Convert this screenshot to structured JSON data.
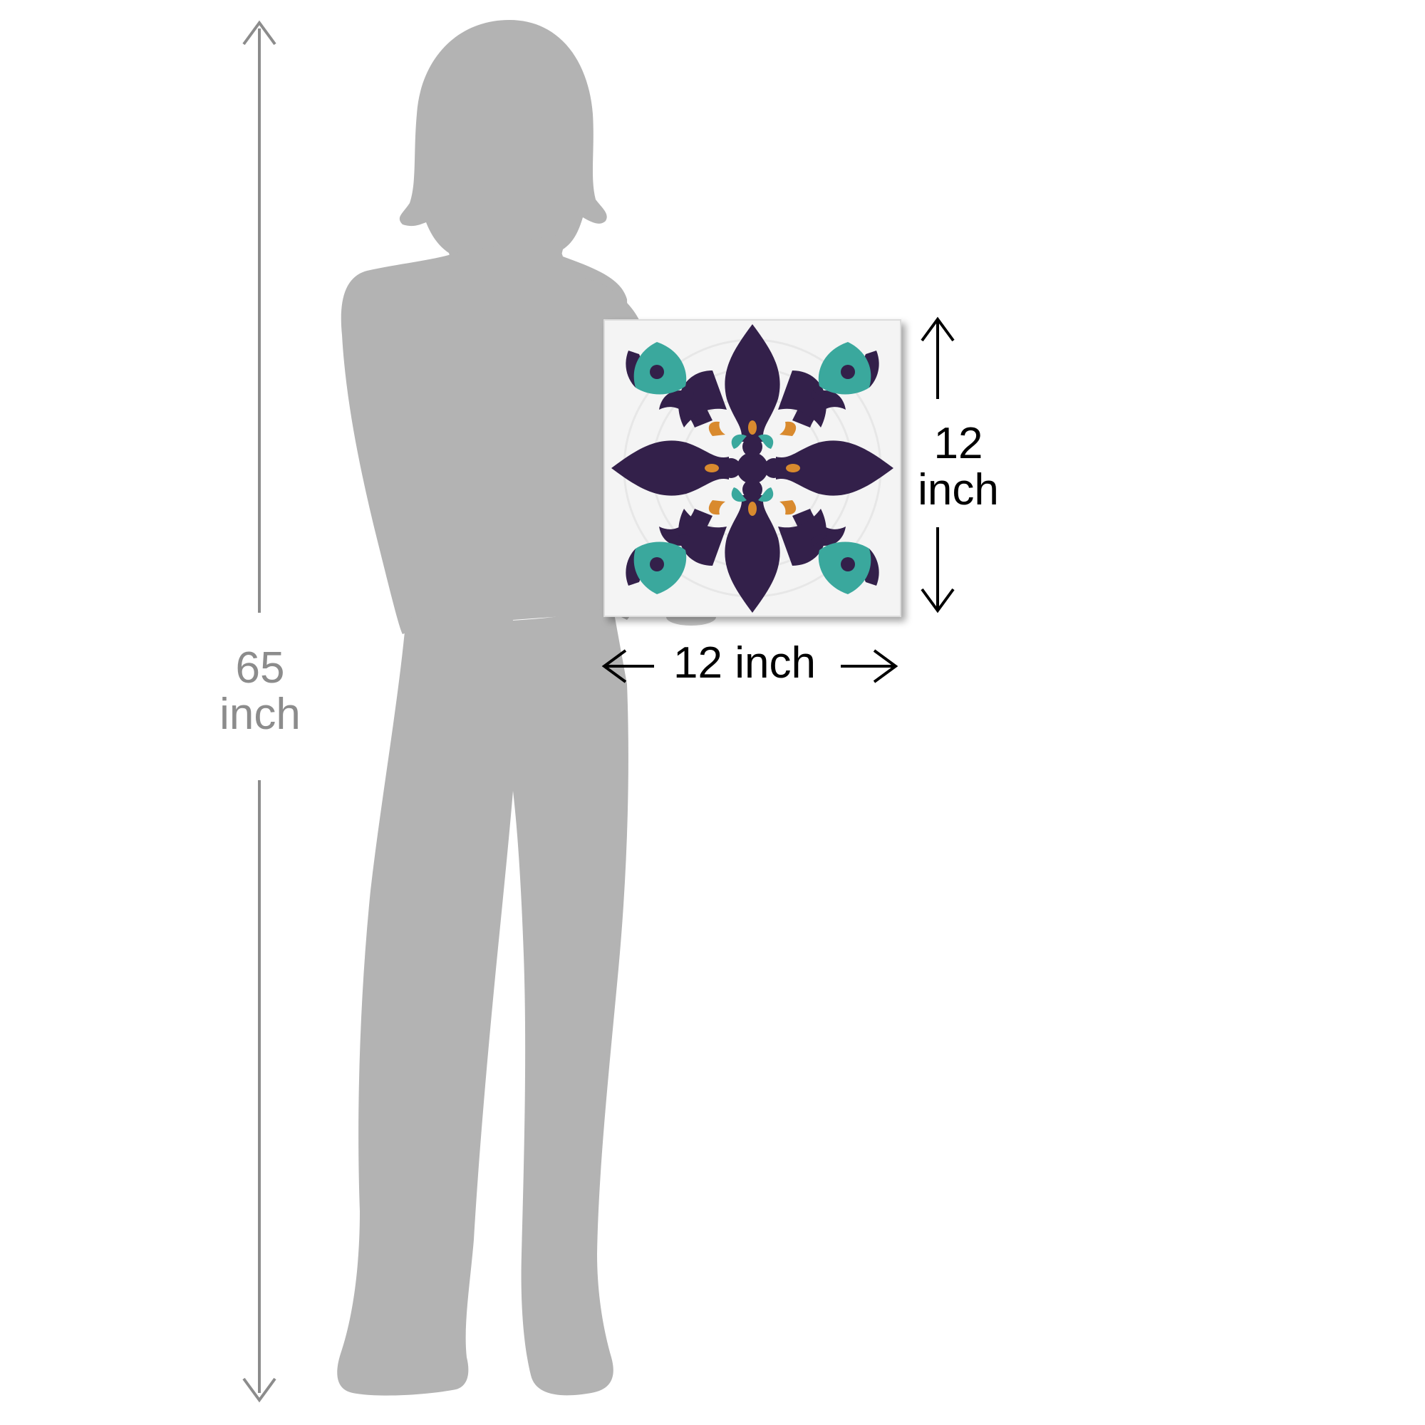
{
  "person_height": {
    "value": "65",
    "unit": "inch"
  },
  "artwork": {
    "height_value": "12",
    "height_unit": "inch",
    "width_text": "12 inch"
  },
  "colors": {
    "silhouette": "#b3b3b3",
    "dimension_line_gray": "#8c8c8c",
    "dimension_line_black": "#000000",
    "tile_background": "#f4f4f4",
    "ornament_purple": "#33204a",
    "ornament_teal": "#3aa89d",
    "ornament_orange": "#d98a2e"
  }
}
